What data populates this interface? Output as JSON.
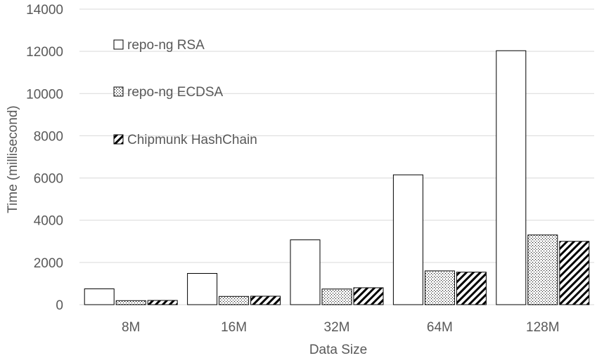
{
  "chart_data": {
    "type": "bar",
    "title": "",
    "xlabel": "Data Size",
    "ylabel": "Time (millisecond)",
    "categories": [
      "8M",
      "16M",
      "32M",
      "64M",
      "128M"
    ],
    "ylim": [
      0,
      14000
    ],
    "yticks": [
      "0",
      "2000",
      "4000",
      "6000",
      "8000",
      "10000",
      "12000",
      "14000"
    ],
    "grid": true,
    "legend_position": "top-left",
    "series": [
      {
        "name": "repo-ng RSA",
        "pattern": "solid-white",
        "values": [
          750,
          1480,
          3070,
          6150,
          12030
        ]
      },
      {
        "name": "repo-ng ECDSA",
        "pattern": "dotted",
        "values": [
          190,
          390,
          740,
          1600,
          3300
        ]
      },
      {
        "name": "Chipmunk HashChain",
        "pattern": "diagonal-stripes",
        "values": [
          200,
          400,
          800,
          1540,
          3000
        ]
      }
    ],
    "colors": {
      "grid": "#d9d9d9",
      "text": "#595959",
      "bar_stroke": "#000000",
      "bar_fill": "#ffffff"
    }
  }
}
